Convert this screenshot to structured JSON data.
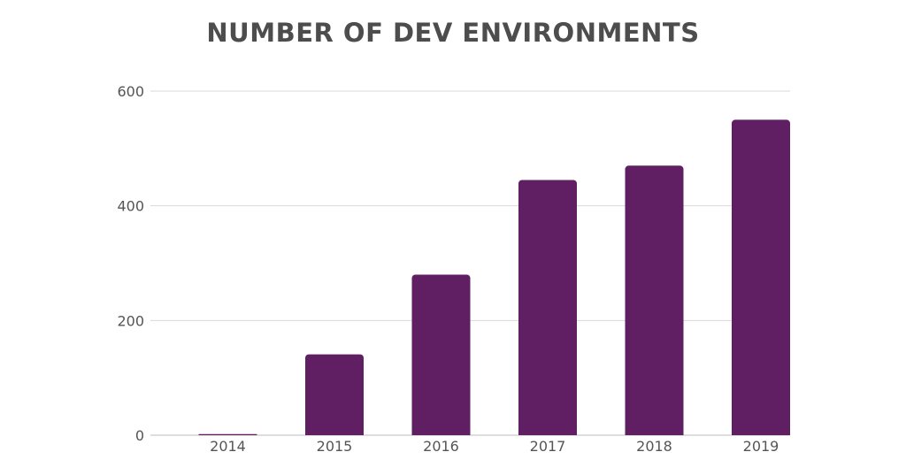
{
  "title": "NUMBER OF DEV ENVIRONMENTS",
  "colors": {
    "bar": "#5f1f62"
  },
  "chart_data": {
    "type": "bar",
    "title": "NUMBER OF DEV ENVIRONMENTS",
    "xlabel": "",
    "ylabel": "",
    "categories": [
      "2014",
      "2015",
      "2016",
      "2017",
      "2018",
      "2019"
    ],
    "values": [
      2,
      141,
      280,
      445,
      470,
      550
    ],
    "ylim": [
      0,
      600
    ],
    "yticks": [
      0,
      200,
      400,
      600
    ],
    "grid": true,
    "legend": "none"
  }
}
